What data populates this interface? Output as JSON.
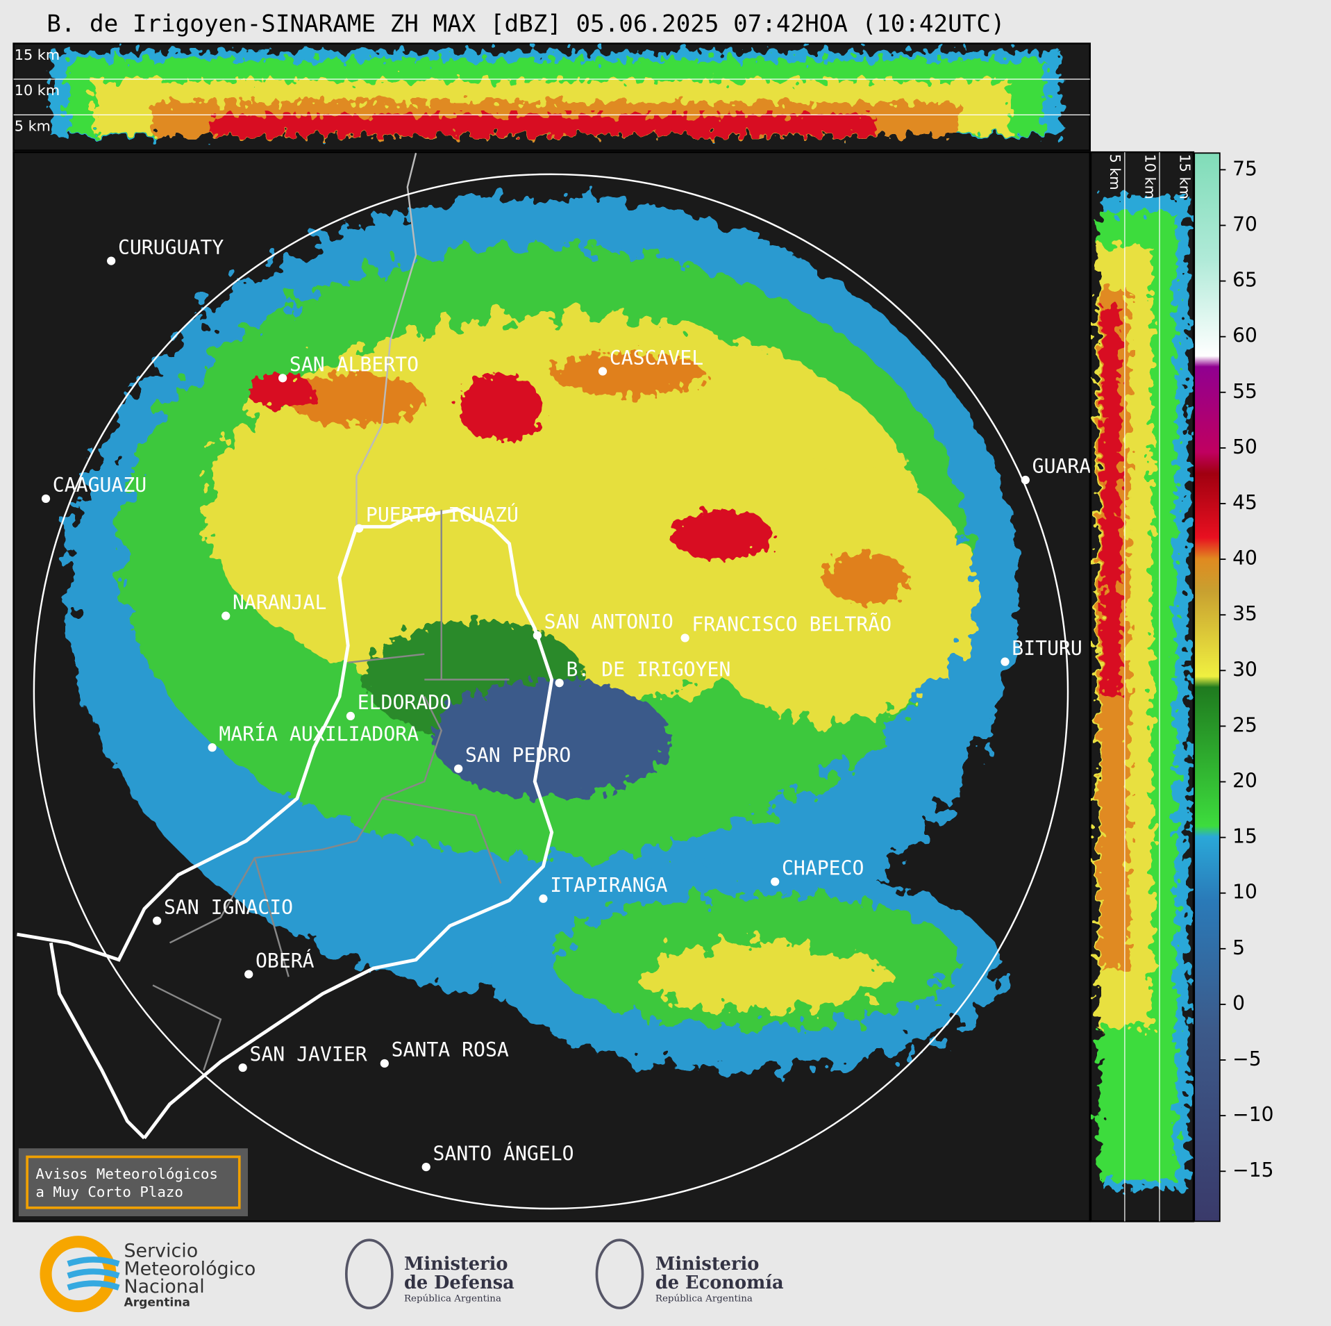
{
  "header": {
    "title": "B. de Irigoyen-SINARAME ZH MAX [dBZ] 05.06.2025 07:42HOA (10:42UTC)"
  },
  "top_panel": {
    "height_labels": [
      "15 km",
      "10 km",
      "5 km"
    ]
  },
  "side_panel": {
    "height_labels": [
      "5 km",
      "10 km",
      "15 km"
    ]
  },
  "map": {
    "cities": [
      "CURUGUATY",
      "SAN ALBERTO",
      "CASCAVEL",
      "CAAGUAZU",
      "GUARA",
      "PUERTO IGUAZÚ",
      "NARANJAL",
      "SAN ANTONIO",
      "FRANCISCO BELTRÃO",
      "BITURU",
      "B. DE IRIGOYEN",
      "ELDORADO",
      "MARÍA AUXILIADORA",
      "SAN PEDRO",
      "CHAPECO",
      "ITAPIRANGA",
      "SAN IGNACIO",
      "OBERÁ",
      "SAN JAVIER",
      "SANTA ROSA",
      "SANTO ÁNGELO"
    ]
  },
  "notice": [
    "Avisos Meteorológicos",
    "a Muy Corto Plazo"
  ],
  "colorbar": {
    "ylim": [
      -19.5,
      76.5
    ],
    "ticks": [
      {
        "value": -15,
        "label": "−15"
      },
      {
        "value": -10,
        "label": "−10"
      },
      {
        "value": -5,
        "label": "−5"
      },
      0,
      5,
      10,
      15,
      20,
      25,
      30,
      35,
      40,
      45,
      50,
      55,
      60,
      65,
      70,
      75
    ]
  },
  "footer": {
    "smn": [
      "Servicio",
      "Meteorológico",
      "Nacional",
      "Argentina"
    ],
    "defensa": [
      "Ministerio",
      "de Defensa",
      "República Argentina"
    ],
    "economia": [
      "Ministerio",
      "de Economía",
      "República Argentina"
    ]
  }
}
